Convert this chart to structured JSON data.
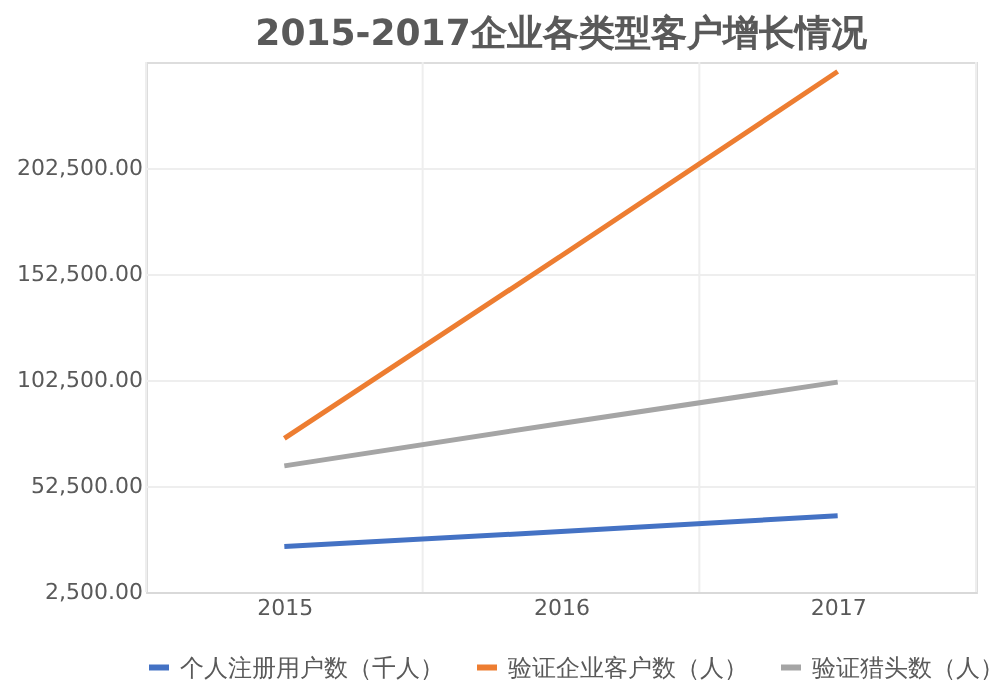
{
  "chart_data": {
    "type": "line",
    "title": "2015-2017企业各类型客户增长情况",
    "categories": [
      "2015",
      "2016",
      "2017"
    ],
    "series": [
      {
        "name": "个人注册用户数（千人）",
        "color": "#4472c4",
        "values": [
          24000,
          31000,
          38500
        ]
      },
      {
        "name": "验证企业客户数（人）",
        "color": "#ed7d31",
        "values": [
          75000,
          161000,
          248000
        ]
      },
      {
        "name": "验证猎头数（人）",
        "color": "#a5a5a5",
        "values": [
          62000,
          82000,
          101500
        ]
      }
    ],
    "ylim": [
      2500,
      252500
    ],
    "yticks": [
      {
        "value": 2500,
        "label": "2,500.00"
      },
      {
        "value": 52500,
        "label": "52,500.00"
      },
      {
        "value": 102500,
        "label": "102,500.00"
      },
      {
        "value": 152500,
        "label": "152,500.00"
      },
      {
        "value": 202500,
        "label": "202,500.00"
      }
    ],
    "grid": true,
    "legend": "bottom",
    "marker": "none",
    "line_style": "solid"
  }
}
